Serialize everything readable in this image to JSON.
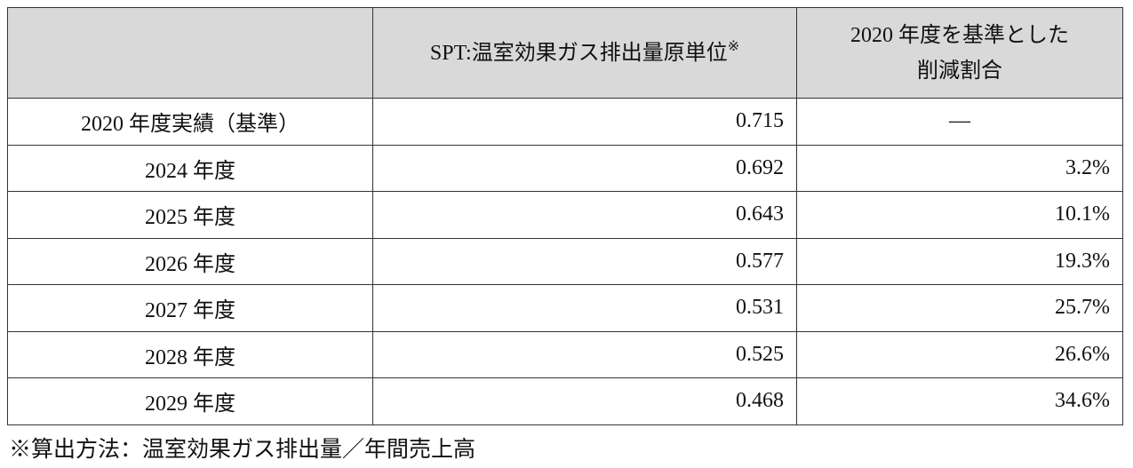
{
  "table": {
    "header": [
      {
        "text": "SPT:温室効果ガス排出量原単位",
        "sup": "※"
      },
      {
        "lines": [
          "2020 年度を基準とした",
          "削減割合"
        ]
      }
    ],
    "rows": [
      [
        "2020 年度実績（基準）",
        "0.715",
        "—"
      ],
      [
        "2024 年度",
        "0.692",
        "3.2%"
      ],
      [
        "2025 年度",
        "0.643",
        "10.1%"
      ],
      [
        "2026 年度",
        "0.577",
        "19.3%"
      ],
      [
        "2027 年度",
        "0.531",
        "25.7%"
      ],
      [
        "2028 年度",
        "0.525",
        "26.6%"
      ],
      [
        "2029 年度",
        "0.468",
        "34.6%"
      ]
    ]
  },
  "footnote": "※算出方法：温室効果ガス排出量／年間売上高"
}
